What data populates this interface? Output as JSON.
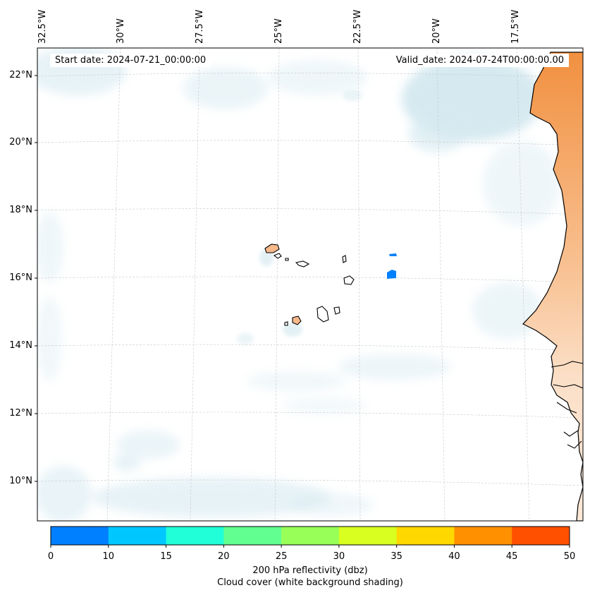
{
  "header": {
    "start_date": "Start date: 2024-07-21_00:00:00",
    "valid_date": "Valid_date: 2024-07-24T00:00:00.00"
  },
  "axes": {
    "lat_labels": [
      "22°N",
      "20°N",
      "18°N",
      "16°N",
      "14°N",
      "12°N",
      "10°N"
    ],
    "lon_labels": [
      "32.5°W",
      "30°W",
      "27.5°W",
      "25°W",
      "22.5°W",
      "20°W",
      "17.5°W"
    ]
  },
  "colorbar": {
    "ticks": [
      "0",
      "10",
      "15",
      "20",
      "25",
      "30",
      "35",
      "40",
      "45",
      "50"
    ],
    "colors": [
      "#0080ff",
      "#00c8ff",
      "#20ffd8",
      "#60ff90",
      "#98ff58",
      "#d8ff20",
      "#ffd800",
      "#ff9000",
      "#ff5000"
    ],
    "title": "200 hPa reflectivity (dbz)",
    "subtitle": "Cloud cover (white background shading)"
  },
  "colors": {
    "cloud": "#cfe6ee",
    "land": "#f5a05a",
    "island_land": "#f7b88a",
    "echo": "#0080ff"
  }
}
